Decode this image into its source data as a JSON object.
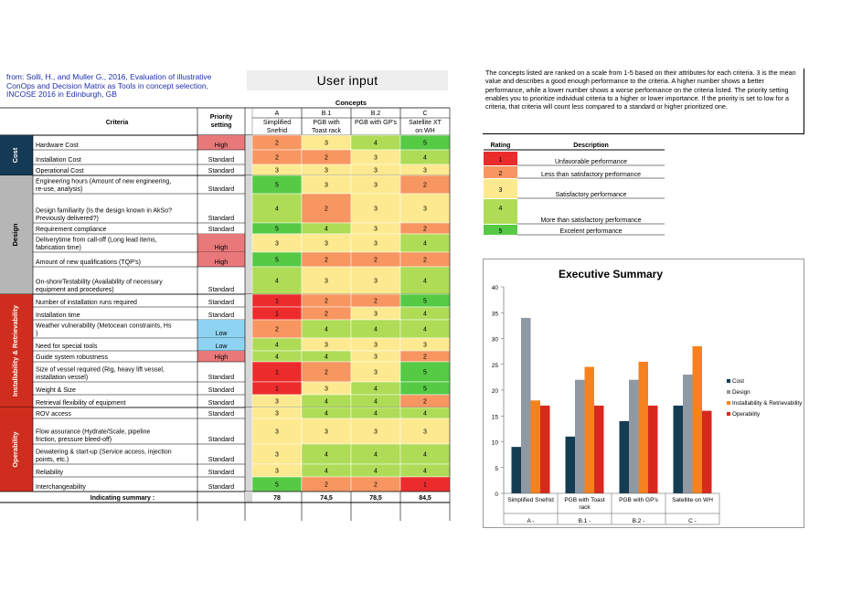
{
  "citation": "from: Solli, H., and Muller G., 2016, Evaluation of illustrative ConOps and Decision Matrix as Tools in concept selection, INCOSE 2016 in Edinburgh, GB",
  "user_input_label": "User input",
  "description_text": "The concepts listed are ranked  on a scale from 1-5 based on their attributes for each criteria. 3 is the mean value and describes a good enough performance to the criteria. A higher number shows a better performance, while a lower number shows a worse performance on the criteria listed. The priority setting enables you to prioritize individual criteria  to a higher or lower importance. If the priority is set to low for a criteria, that criteria will count less compared to a standard or higher prioritized one.",
  "colors": {
    "1": "#ec2c2c",
    "2": "#f79660",
    "3": "#fde98f",
    "4": "#aedc57",
    "5": "#56ca45",
    "high": "#e9787a",
    "low": "#8fd3f2",
    "group": "#cf2e1e",
    "cost_group": "#153a56",
    "design_group": "#b6b6b6"
  },
  "matrix": {
    "header": {
      "concepts": "Concepts",
      "criteria": "Criteria",
      "priority": "Priority setting",
      "summary_label": "Indicating summary :"
    },
    "concepts": [
      {
        "code": "A",
        "name": "Simplified Snefrid"
      },
      {
        "code": "B.1",
        "name": "PGB with Toast rack"
      },
      {
        "code": "B.2",
        "name": "PGB with GP's"
      },
      {
        "code": "C",
        "name": "Satellite XT on WH"
      }
    ],
    "groups": [
      {
        "name": "Cost",
        "rows": [
          {
            "criteria": "Hardware Cost",
            "priority": "High",
            "scores": [
              "2",
              "3",
              "4",
              "5"
            ]
          },
          {
            "criteria": "Installation Cost",
            "priority": "Standard",
            "scores": [
              "2",
              "2",
              "3",
              "4"
            ]
          },
          {
            "criteria": "Operational Cost",
            "priority": "Standard",
            "scores": [
              "3",
              "3",
              "3",
              "3"
            ]
          }
        ]
      },
      {
        "name": "Design",
        "rows": [
          {
            "criteria": "Engineering hours (Amount of new engineering, re-use, analysis)",
            "priority": "Standard",
            "scores": [
              "5",
              "3",
              "3",
              "2"
            ]
          },
          {
            "criteria": "Design familiarity (Is the design known in AkSo? Previously delivered?)",
            "priority": "Standard",
            "scores": [
              "4",
              "2",
              "3",
              "3"
            ]
          },
          {
            "criteria": "Requirement compliance",
            "priority": "Standard",
            "scores": [
              "5",
              "4",
              "3",
              "2"
            ]
          },
          {
            "criteria": "Deliverytime from call-off (Long lead items, fabrication time)",
            "priority": "High",
            "scores": [
              "3",
              "3",
              "3",
              "4"
            ]
          },
          {
            "criteria": "Amount of new qualifications (TQP's)",
            "priority": "High",
            "scores": [
              "5",
              "2",
              "2",
              "2"
            ]
          },
          {
            "criteria": "On-shoreTestability (Availability of necessary equipment and procedures)",
            "priority": "Standard",
            "scores": [
              "4",
              "3",
              "3",
              "4"
            ]
          }
        ]
      },
      {
        "name": "Installability & Retrievability",
        "rows": [
          {
            "criteria": "Number of installation runs required",
            "priority": "Standard",
            "scores": [
              "1",
              "2",
              "2",
              "5"
            ]
          },
          {
            "criteria": "Installation time",
            "priority": "Standard",
            "scores": [
              "1",
              "2",
              "3",
              "4"
            ]
          },
          {
            "criteria": "Weather vulnerability (Metocean constraints, Hs )",
            "priority": "Low",
            "scores": [
              "2",
              "4",
              "4",
              "4"
            ]
          },
          {
            "criteria": "Need for special tools",
            "priority": "Low",
            "scores": [
              "4",
              "3",
              "3",
              "3"
            ]
          },
          {
            "criteria": "Guide system robustness",
            "priority": "High",
            "scores": [
              "4",
              "4",
              "3",
              "2"
            ]
          },
          {
            "criteria": "Size of vessel required (Rig, heavy lift vessel, installation vessel)",
            "priority": "Standard",
            "scores": [
              "1",
              "2",
              "3",
              "5"
            ]
          },
          {
            "criteria": "Weight & Size",
            "priority": "Standard",
            "scores": [
              "1",
              "3",
              "4",
              "5"
            ]
          },
          {
            "criteria": "Retrieval flexibility of equipment",
            "priority": "Standard",
            "scores": [
              "3",
              "4",
              "4",
              "2"
            ]
          }
        ]
      },
      {
        "name": "Operability",
        "rows": [
          {
            "criteria": "ROV access",
            "priority": "Standard",
            "scores": [
              "3",
              "4",
              "4",
              "4"
            ]
          },
          {
            "criteria": "Flow assurance (Hydrate/Scale, pipeline friction, pressure bleed-off)",
            "priority": "Standard",
            "scores": [
              "3",
              "3",
              "3",
              "3"
            ]
          },
          {
            "criteria": "Dewatering & start-up (Service access, injection points, etc.)",
            "priority": "Standard",
            "scores": [
              "3",
              "4",
              "4",
              "4"
            ]
          },
          {
            "criteria": "Reliability",
            "priority": "Standard",
            "scores": [
              "3",
              "4",
              "4",
              "4"
            ]
          },
          {
            "criteria": "Interchangeability",
            "priority": "Standard",
            "scores": [
              "5",
              "2",
              "2",
              "1"
            ]
          }
        ]
      }
    ],
    "summary": [
      "78",
      "74,5",
      "78,5",
      "84,5"
    ]
  },
  "rating_legend": {
    "header_rating": "Rating",
    "header_description": "Description",
    "items": [
      {
        "rating": "1",
        "description": "Unfavorable performance"
      },
      {
        "rating": "2",
        "description": "Less than satisfactory performance"
      },
      {
        "rating": "3",
        "description": "Satisfactory performance"
      },
      {
        "rating": "4",
        "description": "More than satisfactory performance"
      },
      {
        "rating": "5",
        "description": "Excelent performance"
      }
    ]
  },
  "chart_data": {
    "type": "bar",
    "title": "Executive Summary",
    "categories": [
      "Simplified Snefrid",
      "PGB with Toast rack",
      "PGB with GP's",
      "Satellite on WH"
    ],
    "category_codes": [
      "A -",
      "B.1 -",
      "B.2 -",
      "C -"
    ],
    "series": [
      {
        "name": "Cost",
        "color": "#143c52",
        "values": [
          9,
          11,
          14,
          17
        ]
      },
      {
        "name": "Design",
        "color": "#8f99a3",
        "values": [
          34,
          22,
          22,
          23
        ]
      },
      {
        "name": "Installability & Retrievability",
        "color": "#f5821f",
        "values": [
          18,
          24.5,
          25.5,
          28.5
        ]
      },
      {
        "name": "Operability",
        "color": "#d7291e",
        "values": [
          17,
          17,
          17,
          16
        ]
      }
    ],
    "ylim": [
      0,
      40
    ],
    "yticks": [
      0,
      5,
      10,
      15,
      20,
      25,
      30,
      35,
      40
    ],
    "legend": "right",
    "grid": false
  }
}
